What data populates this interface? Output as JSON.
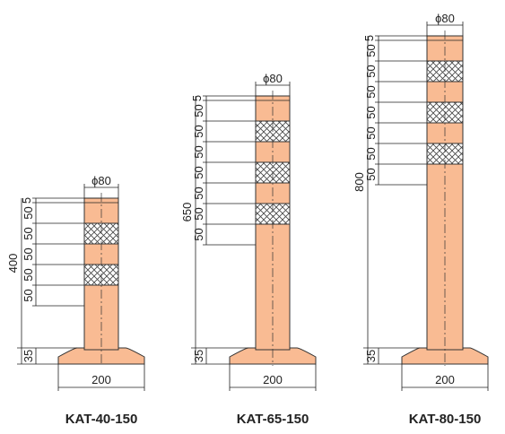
{
  "colors": {
    "body": "#f9bb93",
    "outline": "#333333",
    "reflector_fill": "#ffffff",
    "dim_line": "#222222"
  },
  "posts": [
    {
      "model": "KAT-40-150",
      "diameter_label": "ϕ80",
      "height_label": "400",
      "base_width_label": "200",
      "base_height_label": "35",
      "top_gap_label": "5",
      "band_labels": [
        "50",
        "50",
        "50",
        "50",
        "50"
      ],
      "reflector_count": 2
    },
    {
      "model": "KAT-65-150",
      "diameter_label": "ϕ80",
      "height_label": "650",
      "base_width_label": "200",
      "base_height_label": "35",
      "top_gap_label": "5",
      "band_labels": [
        "50",
        "50",
        "50",
        "50",
        "50",
        "50",
        "50"
      ],
      "reflector_count": 3
    },
    {
      "model": "KAT-80-150",
      "diameter_label": "ϕ80",
      "height_label": "800",
      "base_width_label": "200",
      "base_height_label": "35",
      "top_gap_label": "5",
      "band_labels": [
        "50",
        "50",
        "50",
        "50",
        "50",
        "50",
        "50"
      ],
      "reflector_count": 3
    }
  ]
}
